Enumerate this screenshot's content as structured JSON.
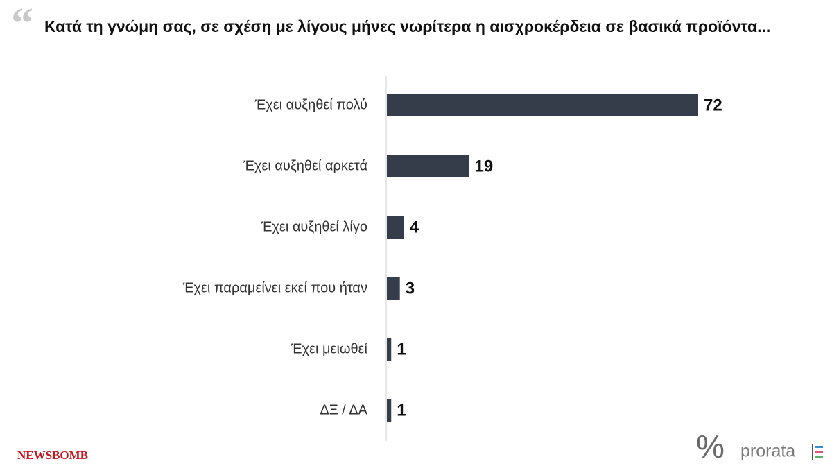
{
  "quote_mark": "“",
  "chart_data": {
    "type": "bar",
    "orientation": "horizontal",
    "title": "Κατά τη γνώμη σας, σε σχέση με λίγους μήνες νωρίτερα η αισχροκέρδεια σε βασικά προϊόντα...",
    "categories": [
      "Έχει αυξηθεί πολύ",
      "Έχει αυξηθεί αρκετά",
      "Έχει αυξηθεί λίγο",
      "Έχει παραμείνει εκεί που ήταν",
      "Έχει μειωθεί",
      "ΔΞ / ΔΑ"
    ],
    "values": [
      72,
      19,
      4,
      3,
      1,
      1
    ],
    "color": "#363d4a"
  },
  "footer": {
    "left_logo": "NEWSBOMB",
    "right_logo_symbol": "%",
    "right_logo": "prorata"
  }
}
